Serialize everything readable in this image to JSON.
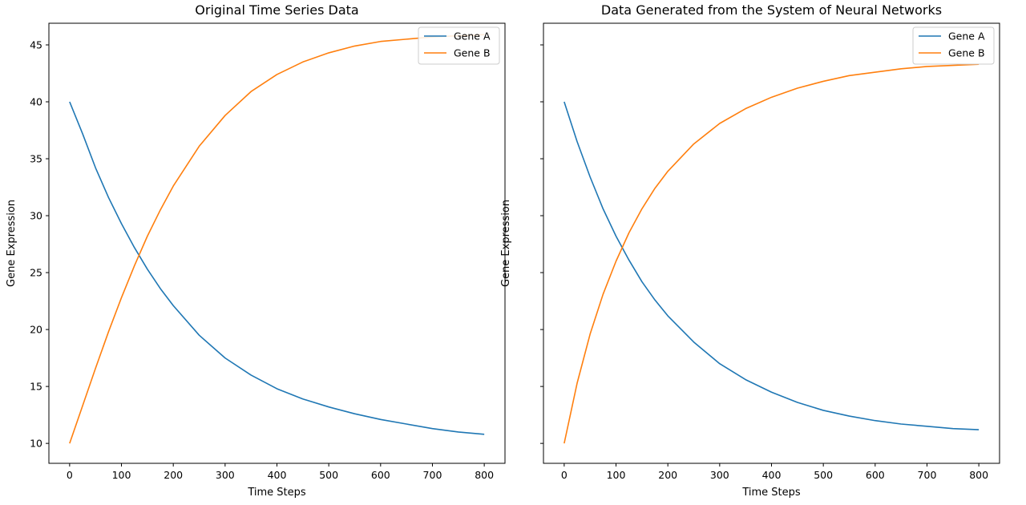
{
  "chart_data": [
    {
      "type": "line",
      "title": "Original Time Series Data",
      "xlabel": "Time Steps",
      "ylabel": "Gene Expression",
      "xlim": [
        -40,
        840
      ],
      "ylim": [
        8.25,
        46.9
      ],
      "xticks": [
        0,
        100,
        200,
        300,
        400,
        500,
        600,
        700,
        800
      ],
      "yticks": [
        10,
        15,
        20,
        25,
        30,
        35,
        40,
        45
      ],
      "ytick_labels_visible": true,
      "grid": false,
      "legend": "top-right",
      "series": [
        {
          "name": "Gene A",
          "color": "#1f77b4",
          "x": [
            0,
            25,
            50,
            75,
            100,
            125,
            150,
            175,
            200,
            250,
            300,
            350,
            400,
            450,
            500,
            550,
            600,
            650,
            700,
            750,
            800
          ],
          "y": [
            40.0,
            37.2,
            34.2,
            31.6,
            29.3,
            27.2,
            25.3,
            23.6,
            22.1,
            19.5,
            17.5,
            16.0,
            14.8,
            13.9,
            13.2,
            12.6,
            12.1,
            11.7,
            11.3,
            11.0,
            10.8
          ]
        },
        {
          "name": "Gene B",
          "color": "#ff7f0e",
          "x": [
            0,
            25,
            50,
            75,
            100,
            125,
            150,
            175,
            200,
            250,
            300,
            350,
            400,
            450,
            500,
            550,
            600,
            650,
            700,
            750,
            800
          ],
          "y": [
            10.0,
            13.3,
            16.6,
            19.8,
            22.8,
            25.6,
            28.2,
            30.5,
            32.6,
            36.1,
            38.8,
            40.9,
            42.4,
            43.5,
            44.3,
            44.9,
            45.3,
            45.5,
            45.7,
            45.8,
            45.9
          ]
        }
      ]
    },
    {
      "type": "line",
      "title": "Data Generated from the System of Neural Networks",
      "xlabel": "Time Steps",
      "ylabel": "Gene Expression",
      "xlim": [
        -40,
        840
      ],
      "ylim": [
        8.25,
        46.9
      ],
      "xticks": [
        0,
        100,
        200,
        300,
        400,
        500,
        600,
        700,
        800
      ],
      "yticks": [
        10,
        15,
        20,
        25,
        30,
        35,
        40,
        45
      ],
      "ytick_labels_visible": false,
      "grid": false,
      "legend": "top-right",
      "series": [
        {
          "name": "Gene A",
          "color": "#1f77b4",
          "x": [
            0,
            25,
            50,
            75,
            100,
            125,
            150,
            175,
            200,
            250,
            300,
            350,
            400,
            450,
            500,
            550,
            600,
            650,
            700,
            750,
            800
          ],
          "y": [
            40.0,
            36.5,
            33.4,
            30.6,
            28.2,
            26.1,
            24.2,
            22.6,
            21.2,
            18.9,
            17.0,
            15.6,
            14.5,
            13.6,
            12.9,
            12.4,
            12.0,
            11.7,
            11.5,
            11.3,
            11.2
          ]
        },
        {
          "name": "Gene B",
          "color": "#ff7f0e",
          "x": [
            0,
            25,
            50,
            75,
            100,
            125,
            150,
            175,
            200,
            250,
            300,
            350,
            400,
            450,
            500,
            550,
            600,
            650,
            700,
            750,
            800
          ],
          "y": [
            10.0,
            15.3,
            19.6,
            23.1,
            26.0,
            28.5,
            30.6,
            32.4,
            33.9,
            36.3,
            38.1,
            39.4,
            40.4,
            41.2,
            41.8,
            42.3,
            42.6,
            42.9,
            43.1,
            43.2,
            43.3
          ]
        }
      ]
    }
  ]
}
